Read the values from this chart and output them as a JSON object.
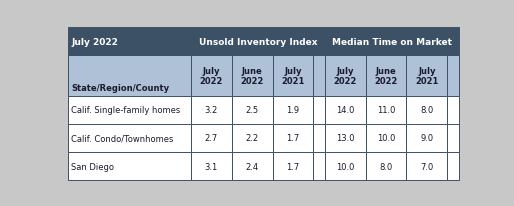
{
  "title": "July 2022",
  "col_group1": "Unsold Inventory Index",
  "col_group2": "Median Time on Market",
  "sub_headers": [
    "July\n2022",
    "June\n2022",
    "July\n2021",
    "July\n2022",
    "June\n2022",
    "July\n2021"
  ],
  "rows": [
    [
      "Calif. Single-family homes",
      "3.2",
      "2.5",
      "1.9",
      "14.0",
      "11.0",
      "8.0"
    ],
    [
      "Calif. Condo/Townhomes",
      "2.7",
      "2.2",
      "1.7",
      "13.0",
      "10.0",
      "9.0"
    ],
    [
      "San Diego",
      "3.1",
      "2.4",
      "1.7",
      "10.0",
      "8.0",
      "7.0"
    ]
  ],
  "state_label": "State/Region/County",
  "header_bg": "#3d5166",
  "subheader_bg": "#afc1d6",
  "row_bg": "#ffffff",
  "alt_row_bg": "#ffffff",
  "border_color": "#3d5166",
  "header_text_color": "#ffffff",
  "subheader_text_color": "#1a1a2e",
  "data_text_color": "#1a1a2e",
  "outer_bg": "#c8c8c8",
  "fig_width": 5.14,
  "fig_height": 2.07,
  "dpi": 100
}
